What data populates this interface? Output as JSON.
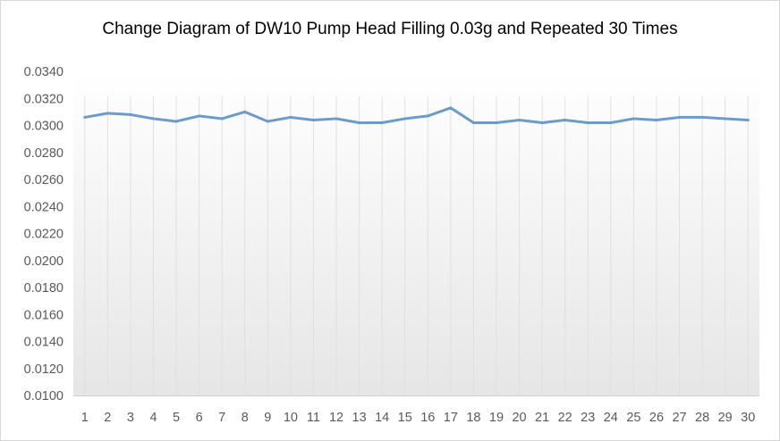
{
  "chart_data": {
    "type": "line",
    "title": "Change Diagram of DW10 Pump Head Filling 0.03g and Repeated 30 Times",
    "xlabel": "",
    "ylabel": "",
    "categories": [
      "1",
      "2",
      "3",
      "4",
      "5",
      "6",
      "7",
      "8",
      "9",
      "10",
      "11",
      "12",
      "13",
      "14",
      "15",
      "16",
      "17",
      "18",
      "19",
      "20",
      "21",
      "22",
      "23",
      "24",
      "25",
      "26",
      "27",
      "28",
      "29",
      "30"
    ],
    "ylim": [
      0.01,
      0.034
    ],
    "ytick_labels": [
      "0.0100",
      "0.0120",
      "0.0140",
      "0.0160",
      "0.0180",
      "0.0200",
      "0.0220",
      "0.0240",
      "0.0260",
      "0.0280",
      "0.0300",
      "0.0320",
      "0.0340"
    ],
    "series": [
      {
        "values": [
          0.0306,
          0.0309,
          0.0308,
          0.0305,
          0.0303,
          0.0307,
          0.0305,
          0.031,
          0.0303,
          0.0306,
          0.0304,
          0.0305,
          0.0302,
          0.0302,
          0.0305,
          0.0307,
          0.0313,
          0.0302,
          0.0302,
          0.0304,
          0.0302,
          0.0304,
          0.0302,
          0.0302,
          0.0305,
          0.0304,
          0.0306,
          0.0306,
          0.0305,
          0.0304
        ],
        "color": "#6a9bca"
      }
    ],
    "grid": "vertical",
    "legend": "none"
  }
}
